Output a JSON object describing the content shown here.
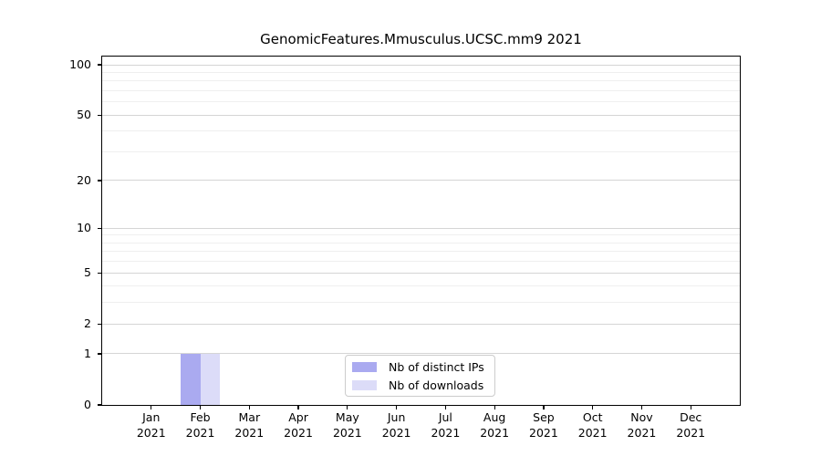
{
  "chart_data": {
    "type": "bar",
    "title": "GenomicFeatures.Mmusculus.UCSC.mm9 2021",
    "categories": [
      "Jan 2021",
      "Feb 2021",
      "Mar 2021",
      "Apr 2021",
      "May 2021",
      "Jun 2021",
      "Jul 2021",
      "Aug 2021",
      "Sep 2021",
      "Oct 2021",
      "Nov 2021",
      "Dec 2021"
    ],
    "series": [
      {
        "name": "Nb of distinct IPs",
        "color": "#aaaaf0",
        "values": [
          0,
          1,
          0,
          0,
          0,
          0,
          0,
          0,
          0,
          0,
          0,
          0
        ]
      },
      {
        "name": "Nb of downloads",
        "color": "#dcdcf8",
        "values": [
          0,
          1,
          0,
          0,
          0,
          0,
          0,
          0,
          0,
          0,
          0,
          0
        ]
      }
    ],
    "yscale": "log1p",
    "ylim": [
      0,
      112
    ],
    "yticks_major": [
      0,
      1,
      2,
      5,
      10,
      20,
      50,
      100
    ],
    "yticks_minor": [
      3,
      4,
      6,
      7,
      8,
      9,
      30,
      40,
      60,
      70,
      80,
      90
    ],
    "grid": true,
    "legend_position": "lower center",
    "axis_color": "#000000",
    "gridline_major_color": "#d5d5d5",
    "gridline_minor_color": "#efefef"
  }
}
